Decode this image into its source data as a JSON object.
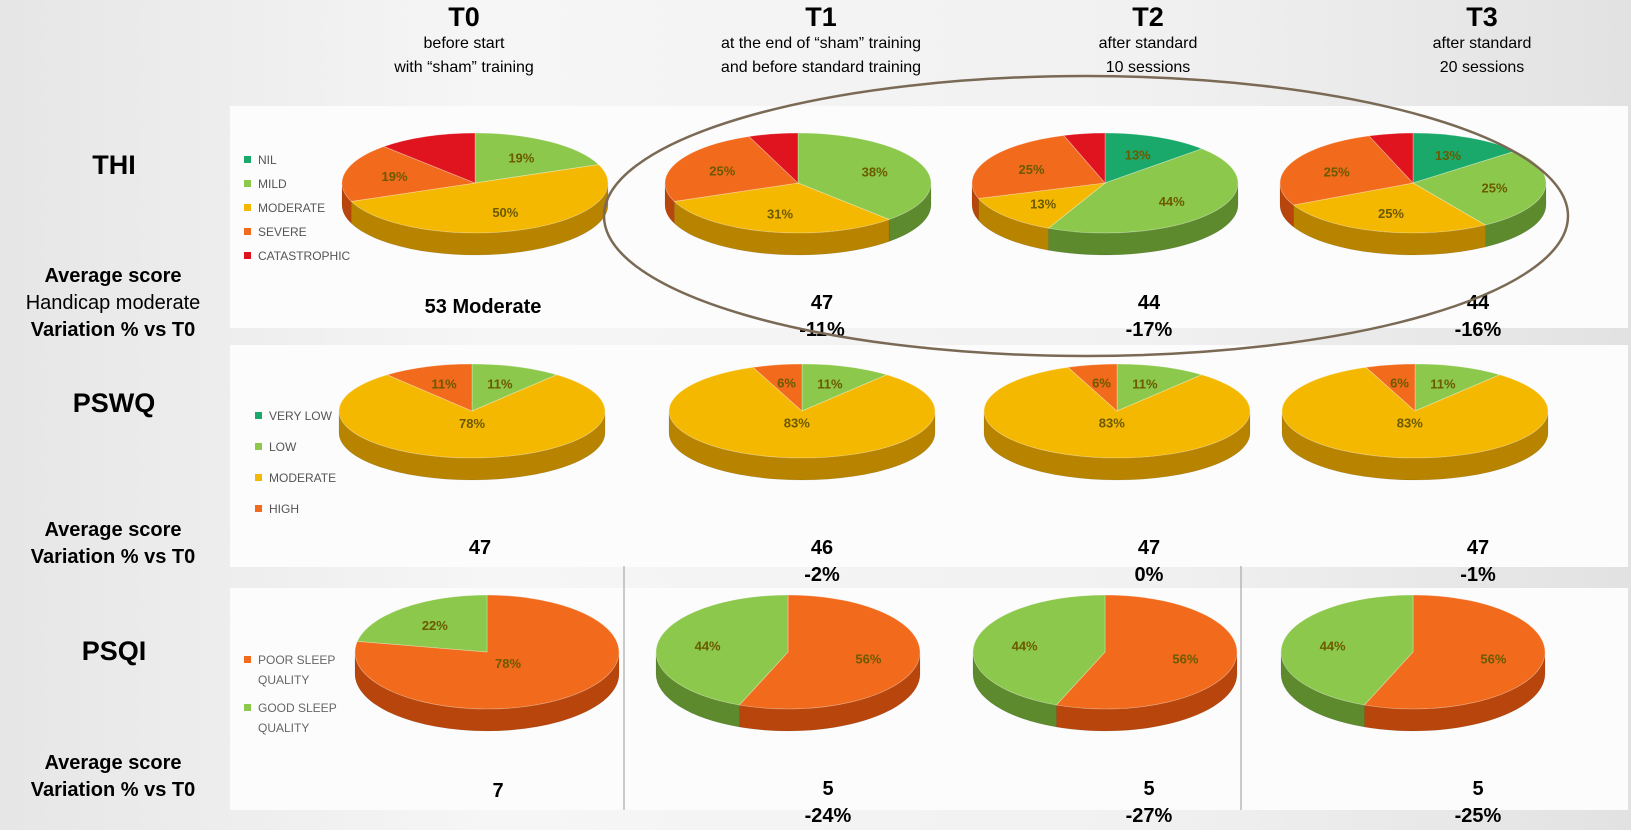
{
  "columns": [
    {
      "title": "T0",
      "desc1": "before start",
      "desc2": "with “sham” training"
    },
    {
      "title": "T1",
      "desc1": "at the end of “sham” training",
      "desc2": "and before standard training"
    },
    {
      "title": "T2",
      "desc1": "after standard",
      "desc2": "10 sessions"
    },
    {
      "title": "T3",
      "desc1": "after standard",
      "desc2": "20 sessions"
    }
  ],
  "rows": {
    "thi": {
      "label": "THI",
      "side1": "Average score",
      "side2": "Handicap moderate",
      "side3": "Variation % vs T0",
      "scores": [
        "53 Moderate",
        "47",
        "44",
        "44"
      ],
      "variations": [
        "",
        "-11%",
        "-17%",
        "-16%"
      ]
    },
    "pswq": {
      "label": "PSWQ",
      "side1": "Average score",
      "side2": "Variation % vs T0",
      "scores": [
        "47",
        "46",
        "47",
        "47"
      ],
      "variations": [
        "",
        "-2%",
        "0%",
        "-1%"
      ]
    },
    "psqi": {
      "label": "PSQI",
      "side1": "Average score",
      "side2": "Variation % vs T0",
      "scores": [
        "7",
        "5",
        "5",
        "5"
      ],
      "variations": [
        "",
        "-24%",
        "-27%",
        "-25%"
      ]
    }
  },
  "chart_data": [
    {
      "type": "pie",
      "id": "thi",
      "categories": [
        "NIL",
        "MILD",
        "MODERATE",
        "SEVERE",
        "CATASTROPHIC"
      ],
      "colors": [
        "#1aa96a",
        "#8cc84b",
        "#f5b800",
        "#f26a1b",
        "#e0141e"
      ],
      "side_colors": [
        "#117a4c",
        "#5e8a2e",
        "#b88400",
        "#b8450b",
        "#9a0c12"
      ],
      "legend": "left",
      "series": [
        {
          "values": [
            0,
            19,
            50,
            19,
            12
          ],
          "labels": [
            "",
            "19%",
            "50%",
            "19%",
            ""
          ]
        },
        {
          "values": [
            0,
            38,
            31,
            25,
            6
          ],
          "labels": [
            "",
            "38%",
            "31%",
            "25%",
            ""
          ]
        },
        {
          "values": [
            13,
            44,
            13,
            25,
            5
          ],
          "labels": [
            "13%",
            "44%",
            "13%",
            "25%",
            ""
          ]
        },
        {
          "values": [
            13,
            25,
            25,
            25,
            5
          ],
          "labels": [
            "13%",
            "25%",
            "25%",
            "25%",
            ""
          ]
        }
      ]
    },
    {
      "type": "pie",
      "id": "pswq",
      "categories": [
        "VERY LOW",
        "LOW",
        "MODERATE",
        "HIGH"
      ],
      "colors": [
        "#1aa96a",
        "#8cc84b",
        "#f5b800",
        "#f26a1b"
      ],
      "side_colors": [
        "#117a4c",
        "#5e8a2e",
        "#b88400",
        "#b8450b"
      ],
      "legend": "left",
      "series": [
        {
          "values": [
            0,
            11,
            78,
            11
          ],
          "labels": [
            "",
            "11%",
            "78%",
            "11%"
          ]
        },
        {
          "values": [
            0,
            11,
            83,
            6
          ],
          "labels": [
            "",
            "11%",
            "83%",
            "6%"
          ]
        },
        {
          "values": [
            0,
            11,
            83,
            6
          ],
          "labels": [
            "",
            "11%",
            "83%",
            "6%"
          ]
        },
        {
          "values": [
            0,
            11,
            83,
            6
          ],
          "labels": [
            "",
            "11%",
            "83%",
            "6%"
          ]
        }
      ]
    },
    {
      "type": "pie",
      "id": "psqi",
      "categories": [
        "POOR SLEEP QUALITY",
        "GOOD SLEEP QUALITY"
      ],
      "colors": [
        "#f26a1b",
        "#8cc84b"
      ],
      "side_colors": [
        "#b8450b",
        "#5e8a2e"
      ],
      "legend": "left",
      "series": [
        {
          "values": [
            78,
            22
          ],
          "labels": [
            "78%",
            "22%"
          ]
        },
        {
          "values": [
            56,
            44
          ],
          "labels": [
            "56%",
            "44%"
          ]
        },
        {
          "values": [
            56,
            44
          ],
          "labels": [
            "56%",
            "44%"
          ]
        },
        {
          "values": [
            56,
            44
          ],
          "labels": [
            "56%",
            "44%"
          ]
        }
      ]
    }
  ]
}
